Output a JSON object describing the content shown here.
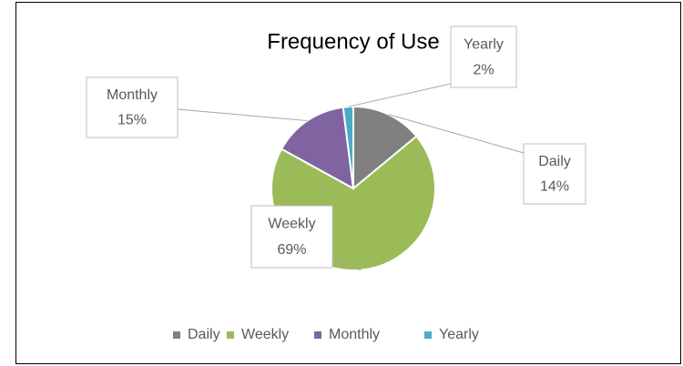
{
  "chart_data": {
    "type": "pie",
    "title": "Frequency of Use",
    "categories": [
      "Daily",
      "Weekly",
      "Monthly",
      "Yearly"
    ],
    "values": [
      14,
      69,
      15,
      2
    ],
    "value_labels": [
      "14%",
      "69%",
      "15%",
      "2%"
    ],
    "colors": [
      "#808080",
      "#9bbb59",
      "#8064a2",
      "#4bacc6"
    ],
    "legend": "bottom"
  }
}
